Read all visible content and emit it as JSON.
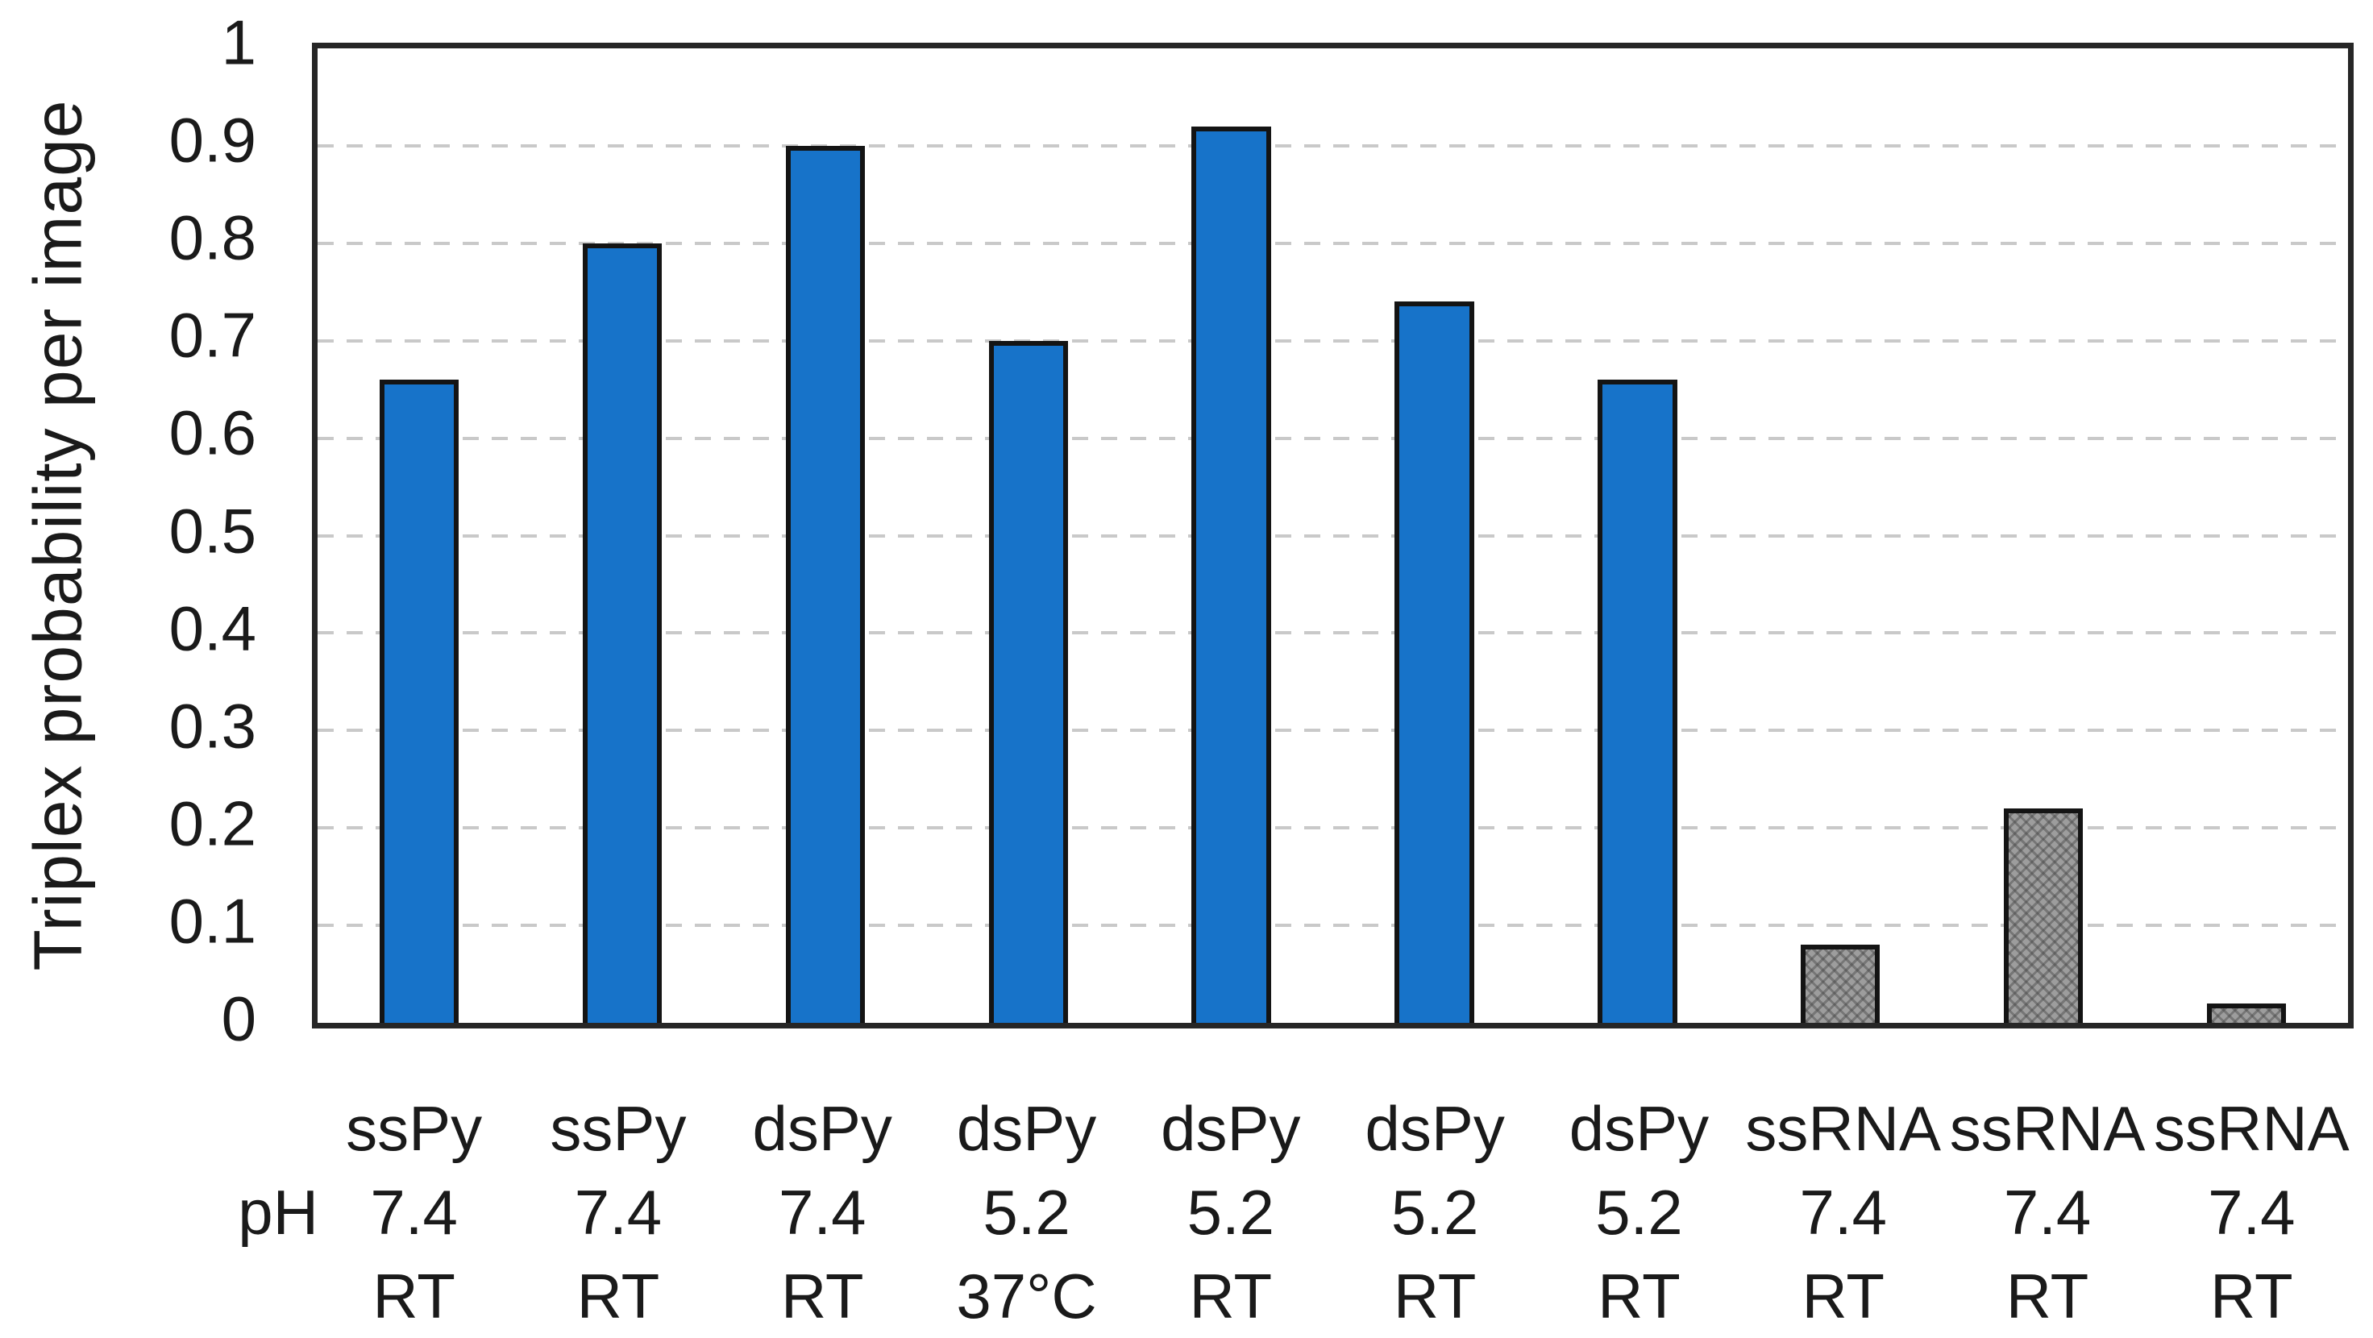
{
  "chart_data": {
    "type": "bar",
    "title": "",
    "ylabel": "Triplex probability per image",
    "xlabel": "",
    "ylim": [
      0,
      1
    ],
    "ytick_interval": 0.1,
    "yticks": [
      "1",
      "0.9",
      "0.8",
      "0.7",
      "0.6",
      "0.5",
      "0.4",
      "0.3",
      "0.2",
      "0.1",
      "0"
    ],
    "grid": "horizontal dashed lines at 0.1 intervals",
    "legend": "none",
    "ph_row_label": "pH",
    "categories": [
      "ssPy",
      "ssPy",
      "dsPy",
      "dsPy",
      "dsPy",
      "dsPy",
      "dsPy",
      "ssRNA",
      "ssRNA",
      "ssRNA"
    ],
    "ph": [
      "7.4",
      "7.4",
      "7.4",
      "5.2",
      "5.2",
      "5.2",
      "5.2",
      "7.4",
      "7.4",
      "7.4"
    ],
    "temperature": [
      "RT",
      "RT",
      "RT",
      "37°C",
      "RT",
      "RT",
      "RT",
      "RT",
      "RT",
      "RT"
    ],
    "values": [
      0.66,
      0.8,
      0.9,
      0.7,
      0.92,
      0.74,
      0.66,
      0.08,
      0.22,
      0.02
    ],
    "bar_styles": [
      "blue",
      "blue",
      "blue",
      "blue",
      "blue",
      "blue",
      "blue",
      "gray",
      "gray",
      "gray"
    ],
    "colors": {
      "blue_bar": "#1773c9",
      "gray_bar": "#9d9d9d",
      "bar_border": "#141414",
      "gridline": "#c9c9c9",
      "axis_frame": "#262626",
      "text": "#1a1a1a"
    }
  }
}
